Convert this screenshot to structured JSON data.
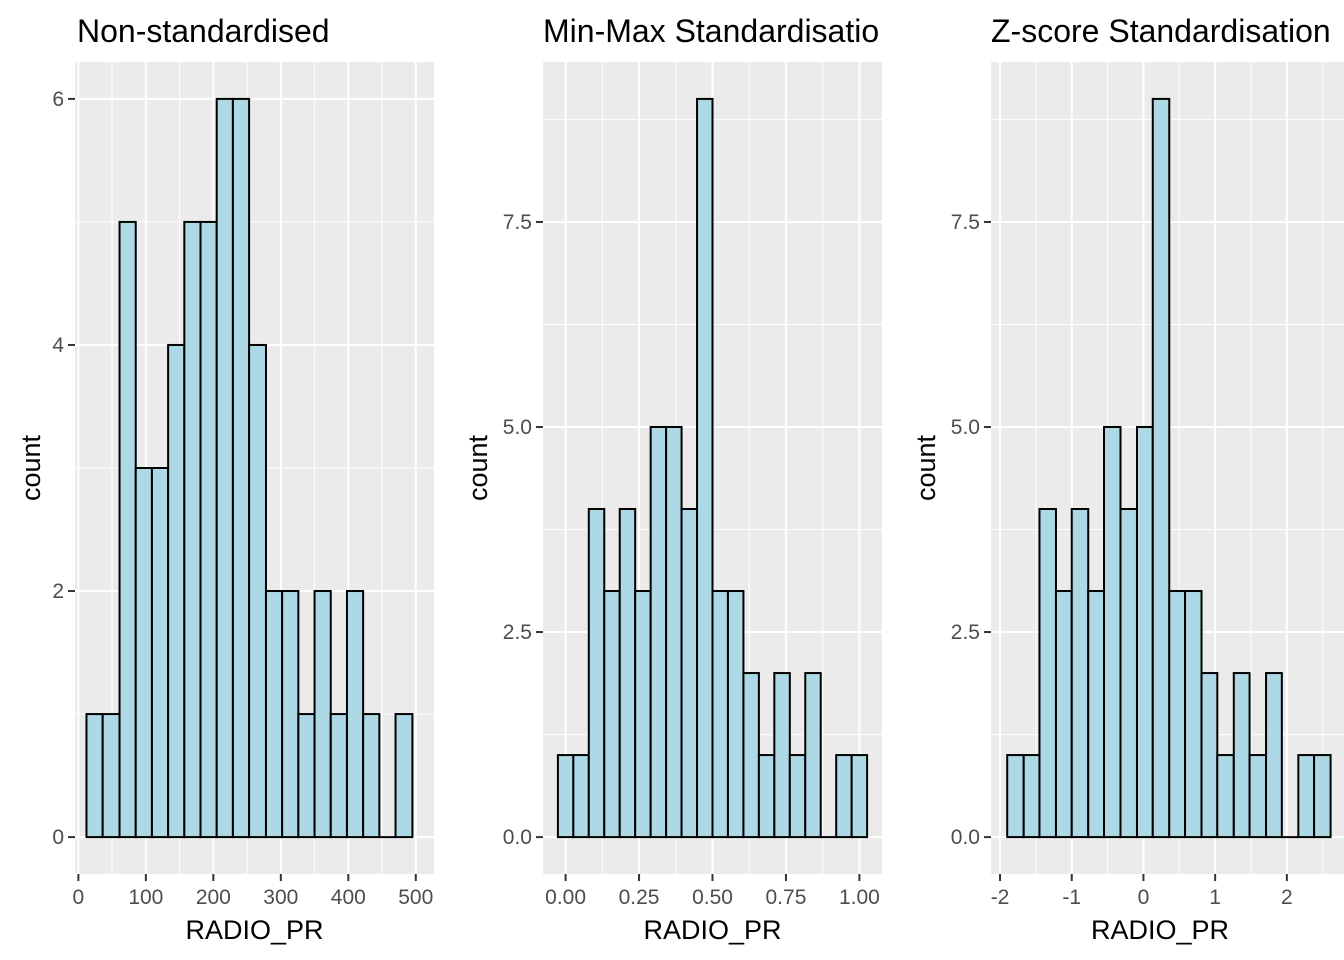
{
  "colors": {
    "panel_background": "#ebebeb",
    "grid_major": "#ffffff",
    "bar_fill": "#add8e6",
    "bar_outline": "#000000",
    "tick_text": "#4d4d4d"
  },
  "chart_data": [
    {
      "type": "bar",
      "title": "Non-standardised",
      "xlabel": "RADIO_PR",
      "ylabel": "count",
      "xlim": [
        -5,
        527
      ],
      "ylim": [
        -0.3,
        6.3
      ],
      "xticks": [
        0,
        100,
        200,
        300,
        400,
        500
      ],
      "xtick_labels": [
        "0",
        "100",
        "200",
        "300",
        "400",
        "500"
      ],
      "yticks": [
        0,
        2,
        4,
        6
      ],
      "ytick_labels": [
        "0",
        "2",
        "4",
        "6"
      ],
      "bins": [
        {
          "x0": 12,
          "x1": 36,
          "count": 1
        },
        {
          "x0": 36,
          "x1": 61,
          "count": 1
        },
        {
          "x0": 61,
          "x1": 85,
          "count": 5
        },
        {
          "x0": 85,
          "x1": 109,
          "count": 3
        },
        {
          "x0": 109,
          "x1": 133,
          "count": 3
        },
        {
          "x0": 133,
          "x1": 157,
          "count": 4
        },
        {
          "x0": 157,
          "x1": 181,
          "count": 5
        },
        {
          "x0": 181,
          "x1": 205,
          "count": 5
        },
        {
          "x0": 205,
          "x1": 229,
          "count": 6
        },
        {
          "x0": 229,
          "x1": 253,
          "count": 6
        },
        {
          "x0": 253,
          "x1": 278,
          "count": 4
        },
        {
          "x0": 278,
          "x1": 302,
          "count": 2
        },
        {
          "x0": 302,
          "x1": 326,
          "count": 2
        },
        {
          "x0": 326,
          "x1": 350,
          "count": 1
        },
        {
          "x0": 350,
          "x1": 374,
          "count": 2
        },
        {
          "x0": 374,
          "x1": 398,
          "count": 1
        },
        {
          "x0": 398,
          "x1": 422,
          "count": 2
        },
        {
          "x0": 422,
          "x1": 446,
          "count": 1
        },
        {
          "x0": 446,
          "x1": 470,
          "count": 0
        },
        {
          "x0": 470,
          "x1": 495,
          "count": 1
        }
      ]
    },
    {
      "type": "bar",
      "title": "Min-Max Standardisatio",
      "xlabel": "RADIO_PR",
      "ylabel": "count",
      "xlim": [
        -0.077,
        1.077
      ],
      "ylim": [
        -0.45,
        9.45
      ],
      "xticks": [
        0,
        0.25,
        0.5,
        0.75,
        1
      ],
      "xtick_labels": [
        "0.00",
        "0.25",
        "0.50",
        "0.75",
        "1.00"
      ],
      "yticks": [
        0,
        2.5,
        5,
        7.5
      ],
      "ytick_labels": [
        "0.0",
        "2.5",
        "5.0",
        "7.5"
      ],
      "bins": [
        {
          "x0": -0.0263,
          "x1": 0.0263,
          "count": 1
        },
        {
          "x0": 0.0263,
          "x1": 0.0789,
          "count": 1
        },
        {
          "x0": 0.0789,
          "x1": 0.1316,
          "count": 4
        },
        {
          "x0": 0.1316,
          "x1": 0.1842,
          "count": 3
        },
        {
          "x0": 0.1842,
          "x1": 0.2368,
          "count": 4
        },
        {
          "x0": 0.2368,
          "x1": 0.2895,
          "count": 3
        },
        {
          "x0": 0.2895,
          "x1": 0.3421,
          "count": 5
        },
        {
          "x0": 0.3421,
          "x1": 0.3947,
          "count": 5
        },
        {
          "x0": 0.3947,
          "x1": 0.4474,
          "count": 4
        },
        {
          "x0": 0.4474,
          "x1": 0.5,
          "count": 9
        },
        {
          "x0": 0.5,
          "x1": 0.5526,
          "count": 3
        },
        {
          "x0": 0.5526,
          "x1": 0.6053,
          "count": 3
        },
        {
          "x0": 0.6053,
          "x1": 0.6579,
          "count": 2
        },
        {
          "x0": 0.6579,
          "x1": 0.7105,
          "count": 1
        },
        {
          "x0": 0.7105,
          "x1": 0.7632,
          "count": 2
        },
        {
          "x0": 0.7632,
          "x1": 0.8158,
          "count": 1
        },
        {
          "x0": 0.8158,
          "x1": 0.8684,
          "count": 2
        },
        {
          "x0": 0.8684,
          "x1": 0.9211,
          "count": 0
        },
        {
          "x0": 0.9211,
          "x1": 0.9737,
          "count": 1
        },
        {
          "x0": 0.9737,
          "x1": 1.0263,
          "count": 1
        }
      ]
    },
    {
      "type": "bar",
      "title": "Z-score Standardisation",
      "xlabel": "RADIO_PR",
      "ylabel": "count",
      "xlim": [
        -2.126,
        2.797
      ],
      "ylim": [
        -0.45,
        9.45
      ],
      "xticks": [
        -2,
        -1,
        0,
        1,
        2
      ],
      "xtick_labels": [
        "-2",
        "-1",
        "0",
        "1",
        "2"
      ],
      "yticks": [
        0,
        2.5,
        5,
        7.5
      ],
      "ytick_labels": [
        "0.0",
        "2.5",
        "5.0",
        "7.5"
      ],
      "bins": [
        {
          "x0": -1.9,
          "x1": -1.67,
          "count": 1
        },
        {
          "x0": -1.67,
          "x1": -1.45,
          "count": 1
        },
        {
          "x0": -1.45,
          "x1": -1.22,
          "count": 4
        },
        {
          "x0": -1.22,
          "x1": -1.0,
          "count": 3
        },
        {
          "x0": -1.0,
          "x1": -0.77,
          "count": 4
        },
        {
          "x0": -0.77,
          "x1": -0.55,
          "count": 3
        },
        {
          "x0": -0.55,
          "x1": -0.32,
          "count": 5
        },
        {
          "x0": -0.32,
          "x1": -0.09,
          "count": 4
        },
        {
          "x0": -0.09,
          "x1": 0.13,
          "count": 5
        },
        {
          "x0": 0.13,
          "x1": 0.36,
          "count": 9
        },
        {
          "x0": 0.36,
          "x1": 0.58,
          "count": 3
        },
        {
          "x0": 0.58,
          "x1": 0.81,
          "count": 3
        },
        {
          "x0": 0.81,
          "x1": 1.03,
          "count": 2
        },
        {
          "x0": 1.03,
          "x1": 1.26,
          "count": 1
        },
        {
          "x0": 1.26,
          "x1": 1.48,
          "count": 2
        },
        {
          "x0": 1.48,
          "x1": 1.71,
          "count": 1
        },
        {
          "x0": 1.71,
          "x1": 1.93,
          "count": 2
        },
        {
          "x0": 1.93,
          "x1": 2.16,
          "count": 0
        },
        {
          "x0": 2.16,
          "x1": 2.38,
          "count": 1
        },
        {
          "x0": 2.38,
          "x1": 2.61,
          "count": 1
        }
      ]
    }
  ]
}
